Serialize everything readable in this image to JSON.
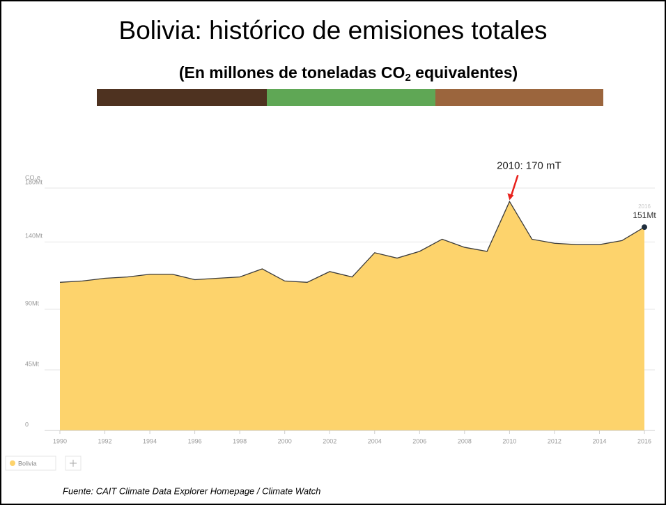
{
  "chart_data": {
    "type": "area",
    "title": "Bolivia: histórico de emisiones totales",
    "subtitle": [
      "(En millones de toneladas CO",
      "2",
      " equivalentes)"
    ],
    "y_axis_label": [
      "CO",
      "2",
      "e"
    ],
    "x": [
      1990,
      1991,
      1992,
      1993,
      1994,
      1995,
      1996,
      1997,
      1998,
      1999,
      2000,
      2001,
      2002,
      2003,
      2004,
      2005,
      2006,
      2007,
      2008,
      2009,
      2010,
      2011,
      2012,
      2013,
      2014,
      2015,
      2016
    ],
    "series": [
      {
        "name": "Bolivia",
        "color": "#fdd36c",
        "values": [
          110,
          111,
          113,
          114,
          116,
          116,
          112,
          113,
          114,
          120,
          111,
          110,
          118,
          114,
          132,
          128,
          133,
          142,
          136,
          133,
          170,
          142,
          139,
          138,
          138,
          141,
          151
        ],
        "value_labels": [
          null,
          null,
          null,
          null,
          null,
          null,
          null,
          null,
          null,
          null,
          null,
          null,
          null,
          null,
          null,
          null,
          null,
          null,
          null,
          null,
          null,
          null,
          null,
          null,
          null,
          null,
          "151Mt"
        ]
      }
    ],
    "xlim": [
      1990,
      2016
    ],
    "xticks": [
      1990,
      1992,
      1994,
      1996,
      1998,
      2000,
      2002,
      2004,
      2006,
      2008,
      2010,
      2012,
      2014,
      2016
    ],
    "ylim": [
      0,
      180
    ],
    "yticks": [
      0,
      {
        "value": 45,
        "label": "45Mt"
      },
      {
        "value": 90,
        "label": "90Mt"
      },
      {
        "value": 140,
        "label": "140Mt"
      },
      {
        "value": 180,
        "label": "180Mt"
      }
    ],
    "grid": true,
    "annotation": "2010: 170 mT",
    "source": "Fuente: CAIT Climate Data Explorer Homepage / Climate Watch"
  }
}
